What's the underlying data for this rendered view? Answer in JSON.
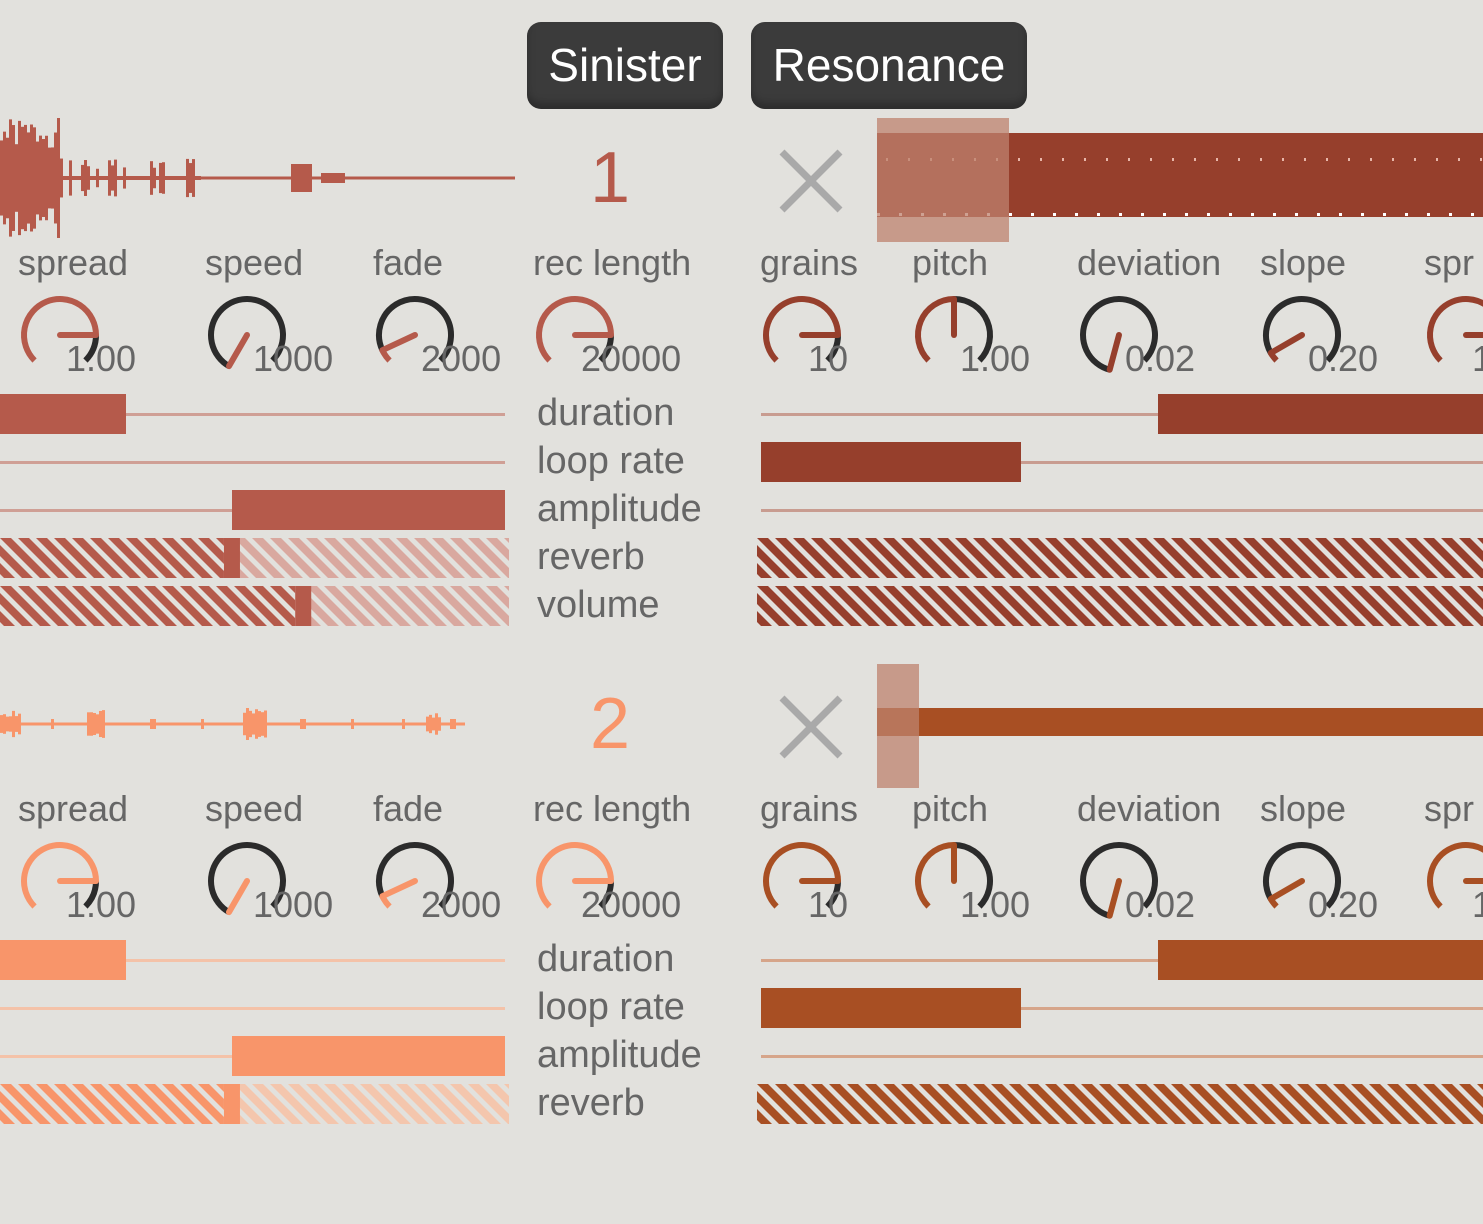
{
  "presets": [
    {
      "label": "Sinister"
    },
    {
      "label": "Resonance"
    }
  ],
  "colors": {
    "background": "#e2e1dd",
    "track1_left": "#b55a4b",
    "track1_right": "#963f2c",
    "track2_left": "#f8956a",
    "track2_right": "#a84f23",
    "close_gray": "#a9a9a9",
    "knob_dark": "#2b2b2b"
  },
  "tracks": [
    {
      "number": "1",
      "knobs_left": [
        {
          "label": "spread",
          "value": "1.00"
        },
        {
          "label": "speed",
          "value": "1000"
        },
        {
          "label": "fade",
          "value": "2000"
        },
        {
          "label": "rec length",
          "value": "20000"
        }
      ],
      "knobs_right": [
        {
          "label": "grains",
          "value": "10"
        },
        {
          "label": "pitch",
          "value": "1.00"
        },
        {
          "label": "deviation",
          "value": "0.02"
        },
        {
          "label": "slope",
          "value": "0.20"
        },
        {
          "label": "spr",
          "value": "1"
        }
      ],
      "slider_labels": [
        "duration",
        "loop rate",
        "amplitude",
        "reverb",
        "volume"
      ],
      "sliders_left": {
        "duration": {
          "from": 0.0,
          "to": 0.25
        },
        "loop_rate": {
          "from": 0.0,
          "to": 0.0
        },
        "amplitude": {
          "from": 0.46,
          "to": 1.0
        },
        "reverb_handle": 0.44,
        "volume_handle": 0.58
      },
      "sliders_right": {
        "duration": {
          "from": 0.55,
          "to": 1.0
        },
        "loop_rate": {
          "from": 0.0,
          "to": 0.36
        },
        "amplitude": {
          "from": 0.0,
          "to": 0.0
        }
      }
    },
    {
      "number": "2",
      "knobs_left": [
        {
          "label": "spread",
          "value": "1.00"
        },
        {
          "label": "speed",
          "value": "1000"
        },
        {
          "label": "fade",
          "value": "2000"
        },
        {
          "label": "rec length",
          "value": "20000"
        }
      ],
      "knobs_right": [
        {
          "label": "grains",
          "value": "10"
        },
        {
          "label": "pitch",
          "value": "1.00"
        },
        {
          "label": "deviation",
          "value": "0.02"
        },
        {
          "label": "slope",
          "value": "0.20"
        },
        {
          "label": "spr",
          "value": "1"
        }
      ],
      "slider_labels": [
        "duration",
        "loop rate",
        "amplitude",
        "reverb"
      ],
      "sliders_left": {
        "duration": {
          "from": 0.0,
          "to": 0.25
        },
        "loop_rate": {
          "from": 0.0,
          "to": 0.0
        },
        "amplitude": {
          "from": 0.46,
          "to": 1.0
        },
        "reverb_handle": 0.44
      },
      "sliders_right": {
        "duration": {
          "from": 0.55,
          "to": 1.0
        },
        "loop_rate": {
          "from": 0.0,
          "to": 0.36
        },
        "amplitude": {
          "from": 0.0,
          "to": 0.0
        }
      }
    }
  ]
}
